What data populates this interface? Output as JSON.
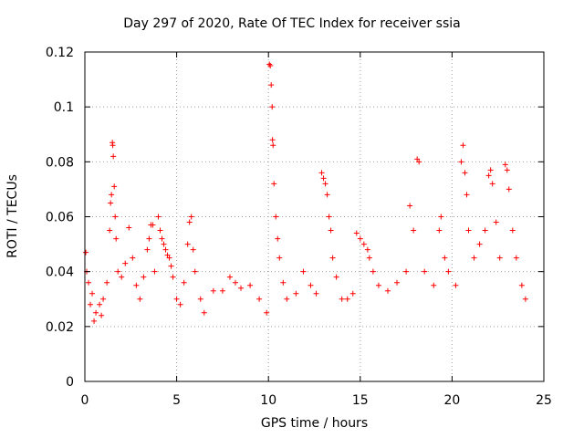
{
  "chart_data": {
    "type": "scatter",
    "title": "Day 297 of 2020, Rate Of TEC Index for receiver ssia",
    "xlabel": "GPS time / hours",
    "ylabel": "ROTI / TECUs",
    "xlim": [
      0,
      25
    ],
    "ylim": [
      0,
      0.12
    ],
    "xticks": [
      "0",
      "5",
      "10",
      "15",
      "20",
      "25"
    ],
    "yticks": [
      "0",
      "0.02",
      "0.04",
      "0.06",
      "0.08",
      "0.1",
      "0.12"
    ],
    "grid": true,
    "marker": "+",
    "color": "#ff0000",
    "series": [
      {
        "points": [
          [
            0.05,
            0.047
          ],
          [
            0.1,
            0.04
          ],
          [
            0.2,
            0.036
          ],
          [
            0.3,
            0.028
          ],
          [
            0.4,
            0.032
          ],
          [
            0.5,
            0.022
          ],
          [
            0.6,
            0.025
          ],
          [
            0.8,
            0.028
          ],
          [
            0.9,
            0.024
          ],
          [
            1.0,
            0.03
          ],
          [
            1.2,
            0.036
          ],
          [
            1.35,
            0.055
          ],
          [
            1.4,
            0.065
          ],
          [
            1.45,
            0.068
          ],
          [
            1.5,
            0.087
          ],
          [
            1.52,
            0.086
          ],
          [
            1.55,
            0.082
          ],
          [
            1.6,
            0.071
          ],
          [
            1.65,
            0.06
          ],
          [
            1.7,
            0.052
          ],
          [
            1.8,
            0.04
          ],
          [
            2.0,
            0.038
          ],
          [
            2.2,
            0.043
          ],
          [
            2.4,
            0.056
          ],
          [
            2.6,
            0.045
          ],
          [
            2.8,
            0.035
          ],
          [
            3.0,
            0.03
          ],
          [
            3.2,
            0.038
          ],
          [
            3.4,
            0.048
          ],
          [
            3.5,
            0.052
          ],
          [
            3.6,
            0.057
          ],
          [
            3.7,
            0.057
          ],
          [
            3.8,
            0.04
          ],
          [
            4.0,
            0.06
          ],
          [
            4.1,
            0.055
          ],
          [
            4.2,
            0.052
          ],
          [
            4.3,
            0.05
          ],
          [
            4.4,
            0.048
          ],
          [
            4.5,
            0.046
          ],
          [
            4.6,
            0.045
          ],
          [
            4.7,
            0.042
          ],
          [
            4.8,
            0.038
          ],
          [
            5.0,
            0.03
          ],
          [
            5.2,
            0.028
          ],
          [
            5.4,
            0.036
          ],
          [
            5.6,
            0.05
          ],
          [
            5.7,
            0.058
          ],
          [
            5.8,
            0.06
          ],
          [
            5.9,
            0.048
          ],
          [
            6.0,
            0.04
          ],
          [
            6.3,
            0.03
          ],
          [
            6.5,
            0.025
          ],
          [
            7.0,
            0.033
          ],
          [
            7.5,
            0.033
          ],
          [
            7.9,
            0.038
          ],
          [
            8.2,
            0.036
          ],
          [
            8.5,
            0.034
          ],
          [
            9.0,
            0.035
          ],
          [
            9.5,
            0.03
          ],
          [
            9.9,
            0.025
          ],
          [
            10.05,
            0.1155
          ],
          [
            10.1,
            0.115
          ],
          [
            10.15,
            0.108
          ],
          [
            10.2,
            0.1
          ],
          [
            10.22,
            0.088
          ],
          [
            10.25,
            0.086
          ],
          [
            10.3,
            0.072
          ],
          [
            10.4,
            0.06
          ],
          [
            10.5,
            0.052
          ],
          [
            10.6,
            0.045
          ],
          [
            10.8,
            0.036
          ],
          [
            11.0,
            0.03
          ],
          [
            11.5,
            0.032
          ],
          [
            11.9,
            0.04
          ],
          [
            12.3,
            0.035
          ],
          [
            12.6,
            0.032
          ],
          [
            12.9,
            0.076
          ],
          [
            13.0,
            0.074
          ],
          [
            13.1,
            0.072
          ],
          [
            13.2,
            0.068
          ],
          [
            13.3,
            0.06
          ],
          [
            13.4,
            0.055
          ],
          [
            13.5,
            0.045
          ],
          [
            13.7,
            0.038
          ],
          [
            14.0,
            0.03
          ],
          [
            14.3,
            0.03
          ],
          [
            14.6,
            0.032
          ],
          [
            14.8,
            0.054
          ],
          [
            15.0,
            0.052
          ],
          [
            15.2,
            0.05
          ],
          [
            15.4,
            0.048
          ],
          [
            15.5,
            0.045
          ],
          [
            15.7,
            0.04
          ],
          [
            16.0,
            0.035
          ],
          [
            16.5,
            0.033
          ],
          [
            17.0,
            0.036
          ],
          [
            17.5,
            0.04
          ],
          [
            17.7,
            0.064
          ],
          [
            17.9,
            0.055
          ],
          [
            18.1,
            0.081
          ],
          [
            18.2,
            0.08
          ],
          [
            18.5,
            0.04
          ],
          [
            19.0,
            0.035
          ],
          [
            19.3,
            0.055
          ],
          [
            19.4,
            0.06
          ],
          [
            19.6,
            0.045
          ],
          [
            19.8,
            0.04
          ],
          [
            20.2,
            0.035
          ],
          [
            20.5,
            0.08
          ],
          [
            20.6,
            0.086
          ],
          [
            20.7,
            0.076
          ],
          [
            20.8,
            0.068
          ],
          [
            20.9,
            0.055
          ],
          [
            21.2,
            0.045
          ],
          [
            21.5,
            0.05
          ],
          [
            21.8,
            0.055
          ],
          [
            22.0,
            0.075
          ],
          [
            22.1,
            0.077
          ],
          [
            22.2,
            0.072
          ],
          [
            22.4,
            0.058
          ],
          [
            22.6,
            0.045
          ],
          [
            22.9,
            0.079
          ],
          [
            23.0,
            0.077
          ],
          [
            23.1,
            0.07
          ],
          [
            23.3,
            0.055
          ],
          [
            23.5,
            0.045
          ],
          [
            23.8,
            0.035
          ],
          [
            24.0,
            0.03
          ]
        ]
      }
    ]
  }
}
